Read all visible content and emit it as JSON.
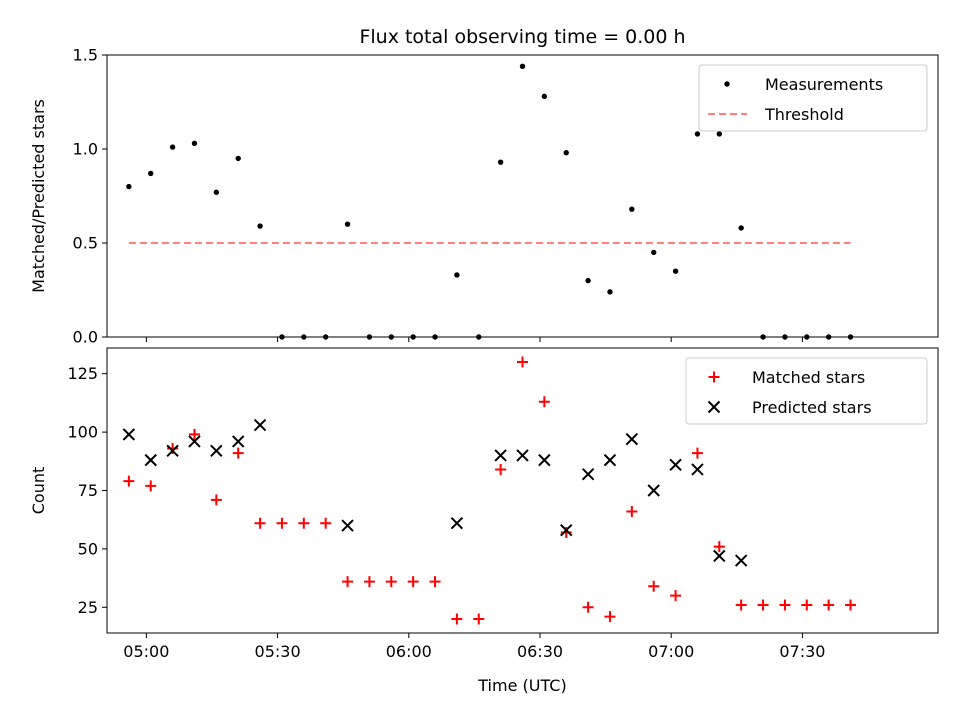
{
  "chart_data": [
    {
      "type": "scatter",
      "title": "Flux total observing time = 0.00 h",
      "xlabel": "",
      "ylabel": "Matched/Predicted stars",
      "ylim": [
        0,
        1.5
      ],
      "xlim": [
        "04:51",
        "08:01"
      ],
      "yticks": [
        "0.0",
        "0.5",
        "1.0",
        "1.5"
      ],
      "legend_position": "top-right",
      "series": [
        {
          "name": "Measurements",
          "marker": "dot",
          "color": "#000000",
          "points": [
            [
              "04:56",
              0.8
            ],
            [
              "05:01",
              0.87
            ],
            [
              "05:06",
              1.01
            ],
            [
              "05:11",
              1.03
            ],
            [
              "05:16",
              0.77
            ],
            [
              "05:21",
              0.95
            ],
            [
              "05:26",
              0.59
            ],
            [
              "05:31",
              0.0
            ],
            [
              "05:36",
              0.0
            ],
            [
              "05:41",
              0.0
            ],
            [
              "05:46",
              0.6
            ],
            [
              "05:51",
              0.0
            ],
            [
              "05:56",
              0.0
            ],
            [
              "06:01",
              0.0
            ],
            [
              "06:06",
              0.0
            ],
            [
              "06:11",
              0.33
            ],
            [
              "06:16",
              0.0
            ],
            [
              "06:21",
              0.93
            ],
            [
              "06:26",
              1.44
            ],
            [
              "06:31",
              1.28
            ],
            [
              "06:36",
              0.98
            ],
            [
              "06:41",
              0.3
            ],
            [
              "06:46",
              0.24
            ],
            [
              "06:51",
              0.68
            ],
            [
              "06:56",
              0.45
            ],
            [
              "07:01",
              0.35
            ],
            [
              "07:06",
              1.08
            ],
            [
              "07:11",
              1.08
            ],
            [
              "07:16",
              0.58
            ],
            [
              "07:21",
              0.0
            ],
            [
              "07:26",
              0.0
            ],
            [
              "07:31",
              0.0
            ],
            [
              "07:36",
              0.0
            ],
            [
              "07:41",
              0.0
            ]
          ]
        },
        {
          "name": "Threshold",
          "marker": "dashed-line",
          "color": "#ff7f7f",
          "points": [
            [
              "04:56",
              0.5
            ],
            [
              "07:41",
              0.5
            ]
          ]
        }
      ]
    },
    {
      "type": "scatter",
      "title": "",
      "xlabel": "Time (UTC)",
      "ylabel": "Count",
      "ylim": [
        14,
        136
      ],
      "xlim": [
        "04:51",
        "08:01"
      ],
      "xticks": [
        "05:00",
        "05:30",
        "06:00",
        "06:30",
        "07:00",
        "07:30"
      ],
      "yticks": [
        "25",
        "50",
        "75",
        "100",
        "125"
      ],
      "legend_position": "top-right",
      "series": [
        {
          "name": "Matched stars",
          "marker": "plus",
          "color": "#ff0000",
          "points": [
            [
              "04:56",
              79
            ],
            [
              "05:01",
              77
            ],
            [
              "05:06",
              93
            ],
            [
              "05:11",
              99
            ],
            [
              "05:16",
              71
            ],
            [
              "05:21",
              91
            ],
            [
              "05:26",
              61
            ],
            [
              "05:31",
              61
            ],
            [
              "05:36",
              61
            ],
            [
              "05:41",
              61
            ],
            [
              "05:46",
              36
            ],
            [
              "05:51",
              36
            ],
            [
              "05:56",
              36
            ],
            [
              "06:01",
              36
            ],
            [
              "06:06",
              36
            ],
            [
              "06:11",
              20
            ],
            [
              "06:16",
              20
            ],
            [
              "06:21",
              84
            ],
            [
              "06:26",
              130
            ],
            [
              "06:31",
              113
            ],
            [
              "06:36",
              57
            ],
            [
              "06:41",
              25
            ],
            [
              "06:46",
              21
            ],
            [
              "06:51",
              66
            ],
            [
              "06:56",
              34
            ],
            [
              "07:01",
              30
            ],
            [
              "07:06",
              91
            ],
            [
              "07:11",
              51
            ],
            [
              "07:16",
              26
            ],
            [
              "07:21",
              26
            ],
            [
              "07:26",
              26
            ],
            [
              "07:31",
              26
            ],
            [
              "07:36",
              26
            ],
            [
              "07:41",
              26
            ]
          ]
        },
        {
          "name": "Predicted stars",
          "marker": "x",
          "color": "#000000",
          "points": [
            [
              "04:56",
              99
            ],
            [
              "05:01",
              88
            ],
            [
              "05:06",
              92
            ],
            [
              "05:11",
              96
            ],
            [
              "05:16",
              92
            ],
            [
              "05:21",
              96
            ],
            [
              "05:26",
              103
            ],
            [
              "05:46",
              60
            ],
            [
              "06:11",
              61
            ],
            [
              "06:21",
              90
            ],
            [
              "06:26",
              90
            ],
            [
              "06:31",
              88
            ],
            [
              "06:36",
              58
            ],
            [
              "06:41",
              82
            ],
            [
              "06:46",
              88
            ],
            [
              "06:51",
              97
            ],
            [
              "06:56",
              75
            ],
            [
              "07:01",
              86
            ],
            [
              "07:06",
              84
            ],
            [
              "07:11",
              47
            ],
            [
              "07:16",
              45
            ]
          ]
        }
      ]
    }
  ]
}
